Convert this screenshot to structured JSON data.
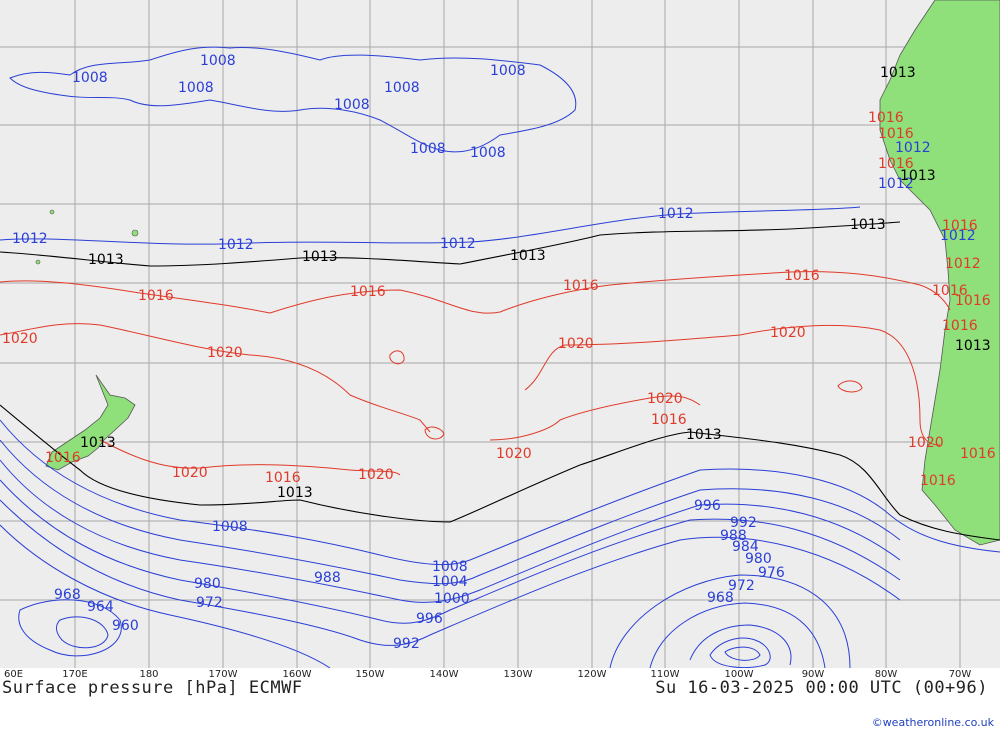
{
  "title": "Surface pressure [hPa] ECMWF",
  "valid_time": "Su 16-03-2025 00:00 UTC (00+96)",
  "credit": "©weatheronline.co.uk",
  "colors": {
    "low": "#2a3fd6",
    "high": "#e03a2a",
    "standard": "#000000",
    "land": "#8fe07a",
    "sea": "#ededed",
    "grid": "#a8a8a8"
  },
  "longitudes": [
    "60E",
    "170E",
    "180",
    "170W",
    "160W",
    "150W",
    "140W",
    "130W",
    "120W",
    "110W",
    "100W",
    "90W",
    "80W",
    "70W"
  ],
  "isobar_labels": {
    "blue": [
      "1008",
      "1008",
      "1008",
      "1008",
      "1008",
      "1008",
      "1008",
      "1008",
      "1012",
      "1012",
      "1012",
      "1012",
      "1012",
      "1012",
      "1012",
      "1008",
      "1008",
      "1004",
      "1000",
      "996",
      "992",
      "988",
      "988",
      "984",
      "980",
      "980",
      "976",
      "972",
      "972",
      "968",
      "968",
      "964",
      "960",
      "996",
      "992"
    ],
    "black": [
      "1013",
      "1013",
      "1013",
      "1013",
      "1013",
      "1013",
      "1013",
      "1013",
      "1013",
      "1013"
    ],
    "red": [
      "1016",
      "1016",
      "1016",
      "1016",
      "1016",
      "1016",
      "1016",
      "1016",
      "1016",
      "1016",
      "1020",
      "1020",
      "1020",
      "1020",
      "1020",
      "1020",
      "1020",
      "1020",
      "1020",
      "1016",
      "1016",
      "1016",
      "1016",
      "1016",
      "1012",
      "1016"
    ]
  }
}
